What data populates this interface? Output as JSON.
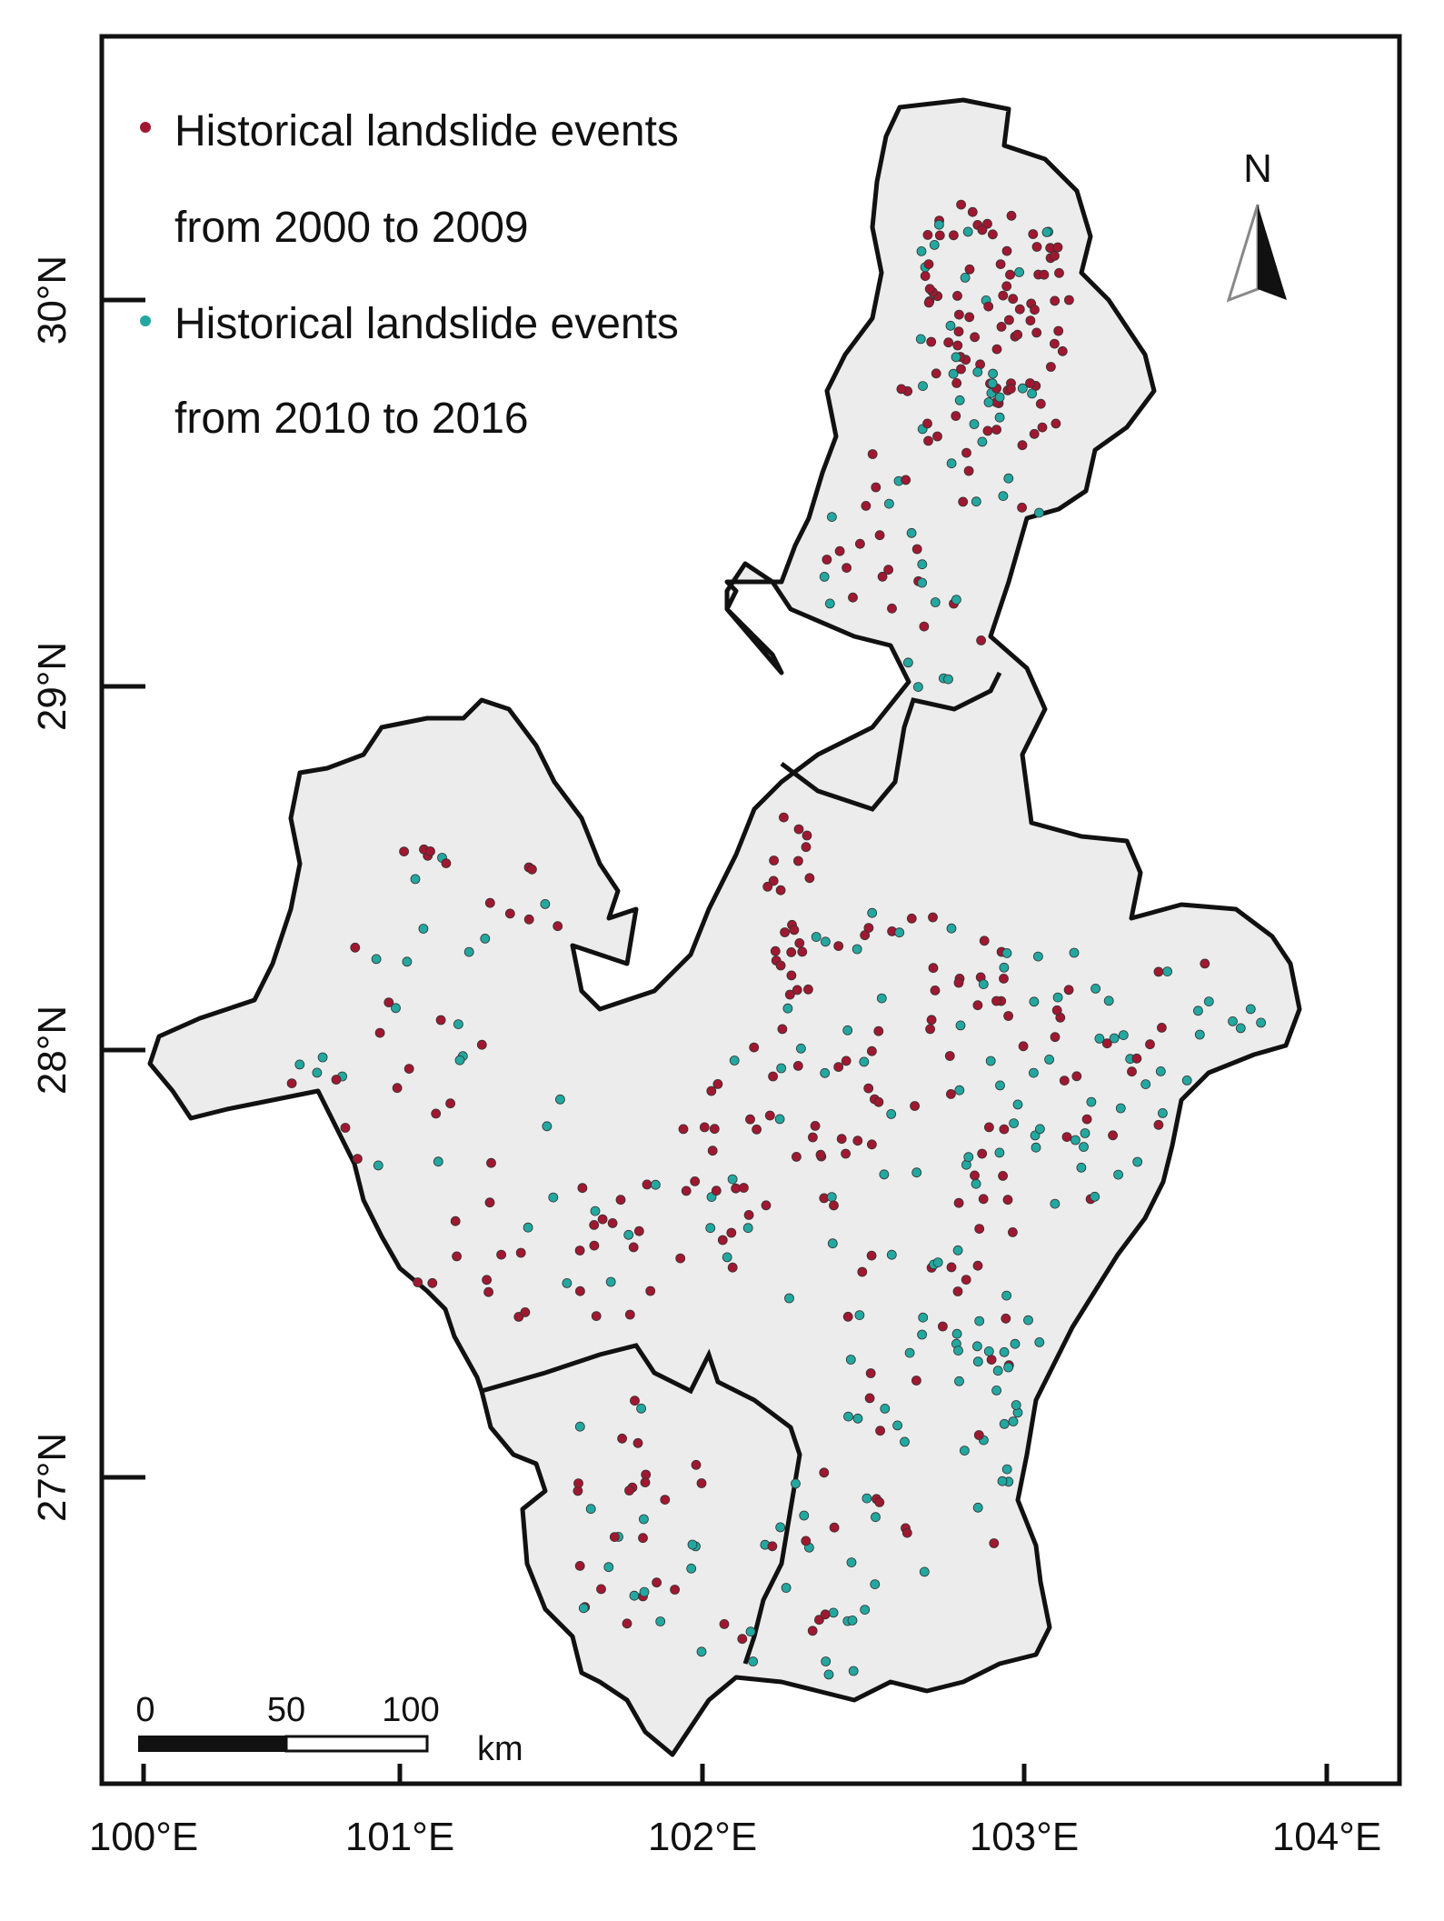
{
  "legend": {
    "items": [
      {
        "line1": "Historical landslide events",
        "line2": "from 2000 to 2009",
        "color": "#a01830"
      },
      {
        "line1": "Historical landslide events",
        "line2": "from 2010 to 2016",
        "color": "#22a8a0"
      }
    ]
  },
  "north_arrow": {
    "label": "N"
  },
  "scale_bar": {
    "labels": [
      "0",
      "50",
      "100"
    ],
    "unit": "km"
  },
  "axes": {
    "x_ticks": [
      "100°E",
      "101°E",
      "102°E",
      "103°E",
      "104°E"
    ],
    "y_ticks": [
      "30°N",
      "29°N",
      "28°N",
      "27°N"
    ]
  },
  "colors": {
    "region_fill": "#ececec",
    "boundary": "#111111",
    "frame": "#111111",
    "series_2000_2009": "#a01830",
    "series_2010_2016": "#22a8a0"
  }
}
